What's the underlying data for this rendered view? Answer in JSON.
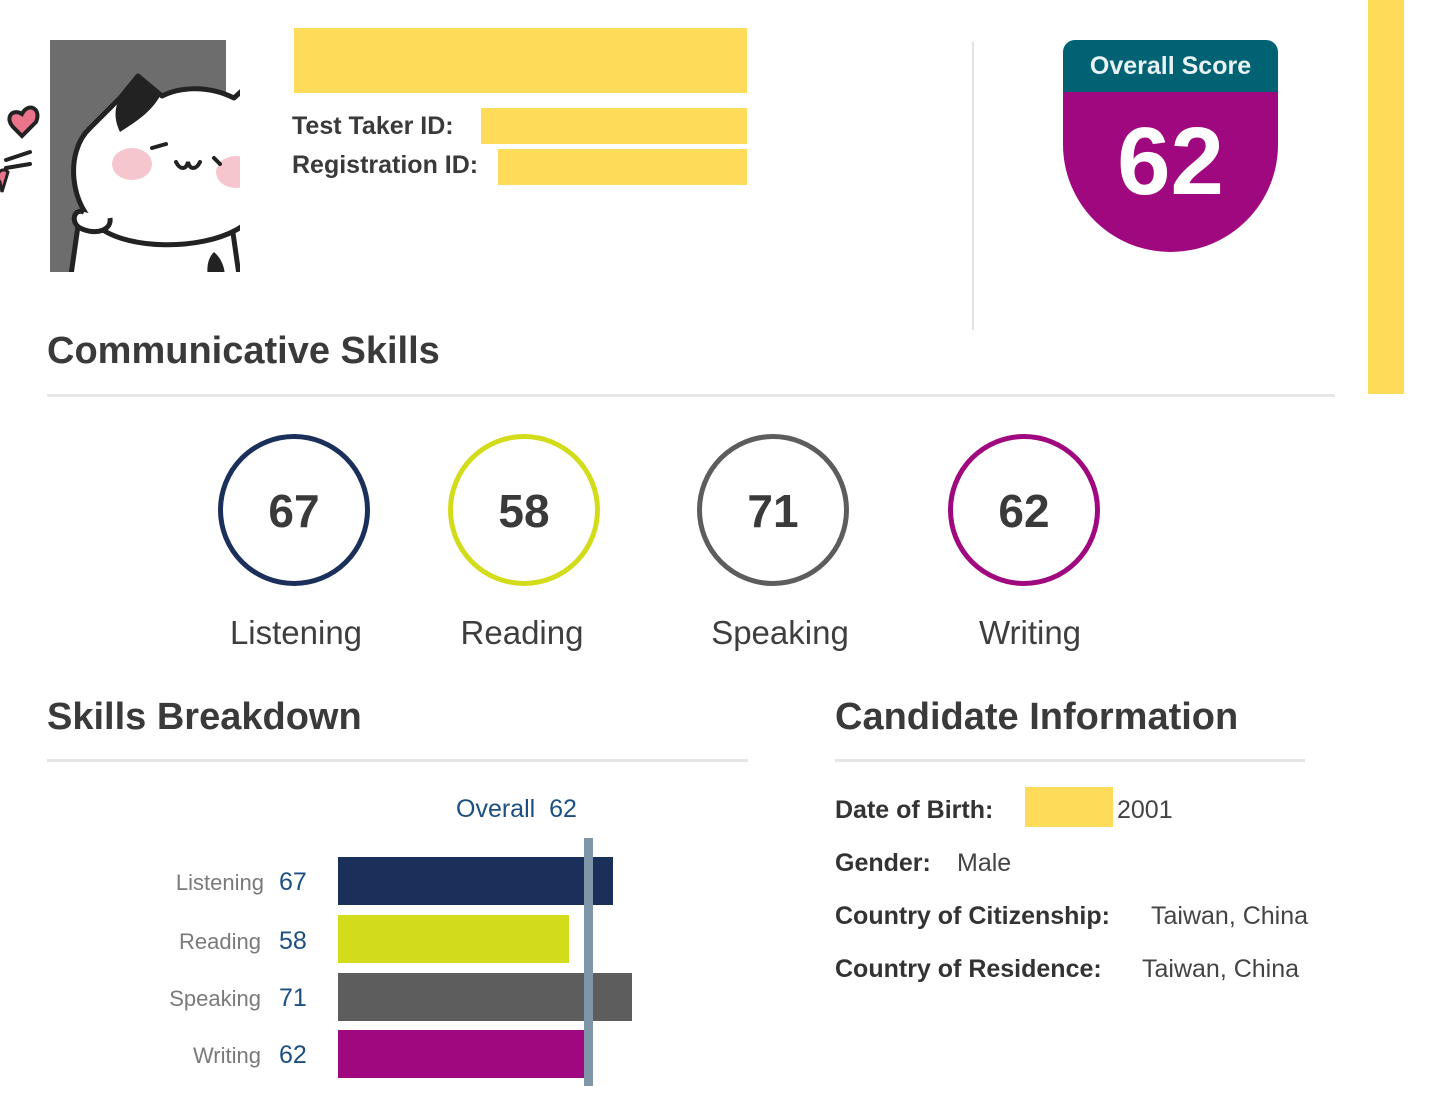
{
  "header": {
    "test_taker_id_label": "Test Taker ID:",
    "registration_id_label": "Registration ID:"
  },
  "overall_badge": {
    "title": "Overall Score",
    "score": "62"
  },
  "communicative_skills": {
    "title": "Communicative Skills",
    "skills": [
      {
        "name": "Listening",
        "score": "67",
        "color": "#1a2f5a"
      },
      {
        "name": "Reading",
        "score": "58",
        "color": "#d3dc1a"
      },
      {
        "name": "Speaking",
        "score": "71",
        "color": "#5d5d5d"
      },
      {
        "name": "Writing",
        "score": "62",
        "color": "#a0087f"
      }
    ]
  },
  "skills_breakdown": {
    "title": "Skills Breakdown",
    "overall_label": "Overall",
    "overall_value": "62"
  },
  "chart_data": {
    "type": "bar",
    "orientation": "horizontal",
    "categories": [
      "Listening",
      "Reading",
      "Speaking",
      "Writing"
    ],
    "values": [
      67,
      58,
      71,
      62
    ],
    "colors": [
      "#1a2f5a",
      "#d3dc1a",
      "#5d5d5d",
      "#a0087f"
    ],
    "reference_line": {
      "label": "Overall",
      "value": 62,
      "color": "#7f96a8"
    },
    "xlim": [
      10,
      90
    ],
    "grid": false
  },
  "candidate_info": {
    "title": "Candidate Information",
    "dob_label": "Date of Birth:",
    "dob_year": "2001",
    "gender_label": "Gender:",
    "gender_value": "Male",
    "citizenship_label": "Country of Citizenship:",
    "citizenship_value": "Taiwan, China",
    "residence_label": "Country of Residence:",
    "residence_value": "Taiwan, China"
  }
}
